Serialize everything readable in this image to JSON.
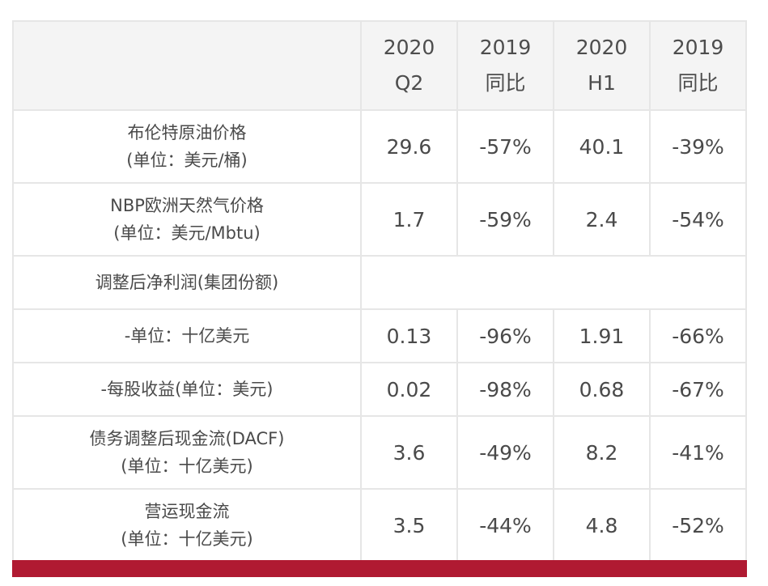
{
  "header": {
    "columns": [
      {
        "line1": "2020",
        "line2": "Q2"
      },
      {
        "line1": "2019",
        "line2": "同比"
      },
      {
        "line1": "2020",
        "line2": "H1"
      },
      {
        "line1": "2019",
        "line2": "同比"
      }
    ]
  },
  "rows": [
    {
      "label1": "布伦特原油价格",
      "label2": "(单位：美元/桶)",
      "values": [
        "29.6",
        "-57%",
        "40.1",
        "-39%"
      ]
    },
    {
      "label1": "NBP欧洲天然气价格",
      "label2": "(单位：美元/Mbtu)",
      "values": [
        "1.7",
        "-59%",
        "2.4",
        "-54%"
      ]
    },
    {
      "label1": "调整后净利润(集团份额)"
    },
    {
      "label1": "-单位：十亿美元",
      "values": [
        "0.13",
        "-96%",
        "1.91",
        "-66%"
      ]
    },
    {
      "label1": "-每股收益(单位：美元)",
      "values": [
        "0.02",
        "-98%",
        "0.68",
        "-67%"
      ]
    },
    {
      "label1": "债务调整后现金流(DACF)",
      "label2": "(单位：十亿美元)",
      "values": [
        "3.6",
        "-49%",
        "8.2",
        "-41%"
      ]
    },
    {
      "label1": "营运现金流",
      "label2": "(单位：十亿美元)",
      "values": [
        "3.5",
        "-44%",
        "4.8",
        "-52%"
      ]
    }
  ],
  "colors": {
    "header_bg": "#f4f4f4",
    "grid": "#e6e6e6",
    "accent_bar": "#b01a32",
    "text": "#4a4a4a"
  }
}
